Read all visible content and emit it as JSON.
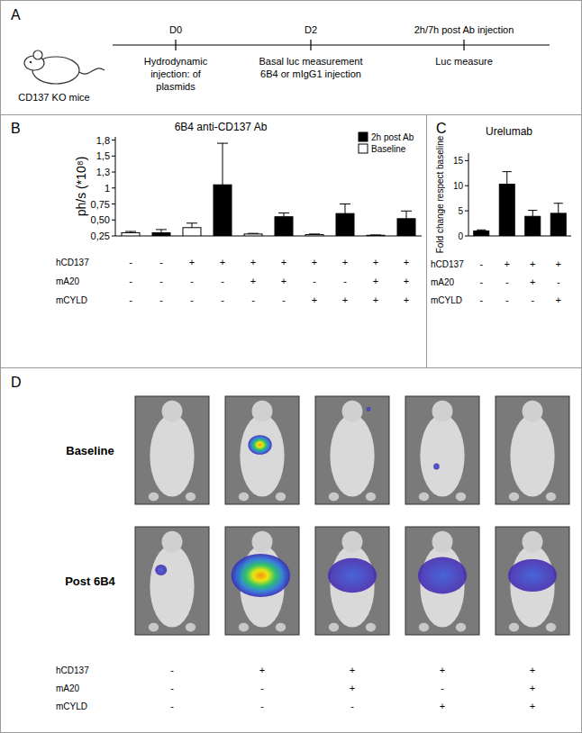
{
  "chart_data": [
    {
      "type": "bar",
      "title": "6B4 anti-CD137 Ab",
      "y_label": "ph/s (*10⁸)",
      "categories": [
        null,
        null,
        null,
        null,
        null,
        null,
        null,
        null,
        null,
        null
      ],
      "series": [
        {
          "name": "2h post Ab",
          "color": "#000000",
          "values": [
            null,
            0.3,
            null,
            1.05,
            null,
            0.55,
            null,
            0.6,
            null,
            0.52
          ],
          "errors": [
            null,
            0.05,
            null,
            0.65,
            null,
            0.06,
            null,
            0.15,
            null,
            0.12
          ]
        },
        {
          "name": "Baseline",
          "color": "#ffffff",
          "values": [
            0.3,
            null,
            0.38,
            null,
            0.28,
            null,
            0.27,
            null,
            0.26,
            null
          ],
          "errors": [
            0.02,
            null,
            0.07,
            null,
            0.01,
            null,
            0.01,
            null,
            0.005,
            null
          ]
        }
      ],
      "ylim": [
        0.25,
        1.8
      ],
      "yticks": [
        {
          "value": 0.25,
          "label": "0,25"
        },
        {
          "value": 0.5,
          "label": "0,50"
        },
        {
          "value": 0.75,
          "label": "0,75"
        },
        1,
        {
          "value": 1.25,
          "label": "1,3"
        },
        {
          "value": 1.5,
          "label": "1,5"
        },
        {
          "value": 1.75,
          "label": "1,8"
        }
      ],
      "legend": "upper right",
      "conditions": {
        "labels": [
          "hCD137",
          "mA20",
          "mCYLD"
        ],
        "rows": [
          [
            "-",
            "-",
            "+",
            "+",
            "+",
            "+",
            "+",
            "+",
            "+",
            "+"
          ],
          [
            "-",
            "-",
            "-",
            "-",
            "+",
            "+",
            "-",
            "-",
            "+",
            "+"
          ],
          [
            "-",
            "-",
            "-",
            "-",
            "-",
            "-",
            "+",
            "+",
            "+",
            "+"
          ]
        ]
      }
    },
    {
      "type": "bar",
      "title": "Urelumab",
      "y_label": "Fold change respect baseline",
      "categories": [
        null,
        null,
        null,
        null
      ],
      "series": [
        {
          "name": "Urelumab",
          "color": "#000000",
          "values": [
            1.0,
            10.3,
            3.9,
            4.5
          ],
          "errors": [
            0.2,
            2.5,
            1.2,
            2.0
          ]
        }
      ],
      "ylim": [
        0,
        16.5
      ],
      "yticks": [
        0,
        5,
        10,
        15
      ],
      "conditions": {
        "labels": [
          "hCD137",
          "mA20",
          "mCYLD"
        ],
        "rows": [
          [
            "-",
            "+",
            "+",
            "+"
          ],
          [
            "-",
            "-",
            "+",
            "-"
          ],
          [
            "-",
            "-",
            "-",
            "+"
          ]
        ]
      }
    }
  ],
  "panel_labels": [
    "A",
    "B",
    "C",
    "D"
  ],
  "timeline": {
    "subject": "CD137 KO mice",
    "steps": [
      {
        "day": "D0",
        "lines": [
          "Hydrodynamic",
          "injection: of",
          "plasmids"
        ]
      },
      {
        "day": "D2",
        "lines": [
          "Basal  luc measurement",
          "6B4 or mIgG1 injection"
        ]
      },
      {
        "day": "2h/7h post Ab injection",
        "lines": [
          "Luc measure"
        ]
      }
    ]
  },
  "images": {
    "row_labels": [
      "Baseline",
      "Post 6B4"
    ],
    "conditions": {
      "labels": [
        "hCD137",
        "mA20",
        "mCYLD"
      ],
      "rows": [
        [
          "-",
          "+",
          "+",
          "+",
          "+"
        ],
        [
          "-",
          "-",
          "+",
          "-",
          "+"
        ],
        [
          "-",
          "-",
          "-",
          "+",
          "+"
        ]
      ]
    }
  }
}
